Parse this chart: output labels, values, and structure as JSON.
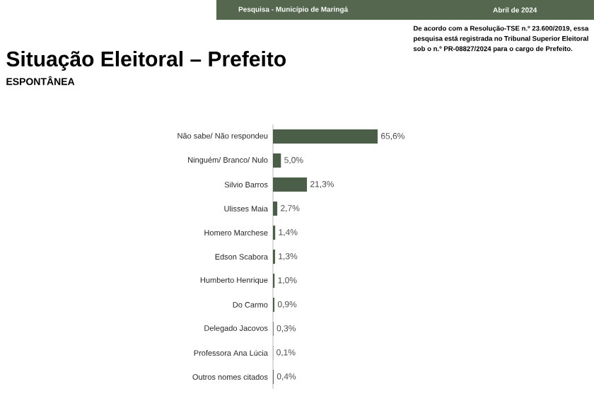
{
  "chart_data": {
    "type": "bar",
    "orientation": "horizontal",
    "title": "Situação Eleitoral – Prefeito",
    "subtitle": "ESPONTÂNEA",
    "annotations": [
      "Pesquisa - Município de Maringá",
      "Abril de 2024",
      "De acordo com a Resolução-TSE n.º 23.600/2019, essa pesquisa está registrada no Tribunal Superior Eleitoral sob o n.º PR-08827/2024 para o cargo de Prefeito."
    ],
    "categories": [
      "Não sabe/ Não respondeu",
      "Ninguém/ Branco/ Nulo",
      "Silvio Barros",
      "Ulisses Maia",
      "Homero Marchese",
      "Edson Scabora",
      "Humberto Henrique",
      "Do Carmo",
      "Delegado Jacovos",
      "Professora Ana Lúcia",
      "Outros nomes citados"
    ],
    "values": [
      65.6,
      5.0,
      21.3,
      2.7,
      1.4,
      1.3,
      1.0,
      0.9,
      0.3,
      0.1,
      0.4
    ],
    "value_labels": [
      "65,6%",
      "5,0%",
      "21,3%",
      "2,7%",
      "1,4%",
      "1,3%",
      "1,0%",
      "0,9%",
      "0,3%",
      "0,1%",
      "0,4%"
    ],
    "color": "#4b5e47"
  }
}
